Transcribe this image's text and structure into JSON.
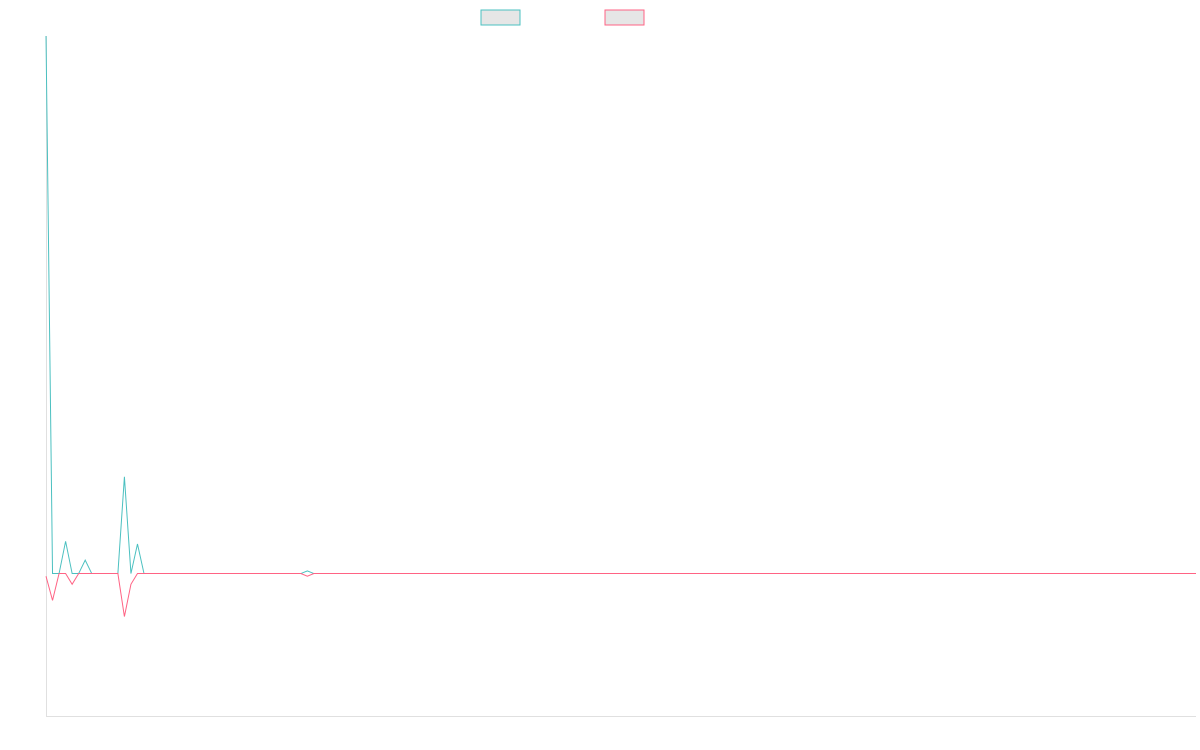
{
  "chart_data": {
    "type": "line",
    "title": "",
    "xlabel": "",
    "ylabel": "",
    "grid": false,
    "legend_position": "top",
    "x": [
      0,
      1,
      2,
      3,
      4,
      5,
      6,
      7,
      8,
      9,
      10,
      11,
      12,
      13,
      14,
      15,
      16,
      17,
      18,
      19,
      20,
      21,
      22,
      23,
      24,
      25,
      26,
      27,
      28,
      29,
      30,
      31,
      32,
      33,
      34,
      35,
      36,
      37,
      38,
      39,
      40,
      41,
      42,
      43,
      44,
      45,
      46,
      47,
      48,
      49,
      50,
      51,
      52,
      53,
      54,
      55,
      56,
      57,
      58,
      59,
      60,
      61,
      62,
      63,
      64,
      65,
      66,
      67,
      68,
      69,
      70,
      71,
      72,
      73,
      74,
      75,
      76,
      77,
      78,
      79,
      80,
      81,
      82,
      83,
      84,
      85,
      86,
      87,
      88,
      89,
      90,
      91,
      92,
      93,
      94,
      95,
      96,
      97,
      98,
      99,
      100,
      101,
      102,
      103,
      104,
      105,
      106,
      107,
      108,
      109,
      110,
      111,
      112,
      113,
      114,
      115,
      116,
      117,
      118,
      119,
      120,
      121,
      122,
      123,
      124,
      125,
      126,
      127,
      128,
      129,
      130,
      131,
      132,
      133,
      134,
      135,
      136,
      137,
      138,
      139,
      140,
      141,
      142,
      143,
      144,
      145,
      146,
      147,
      148,
      149,
      150,
      151,
      152,
      153,
      154,
      155,
      156,
      157,
      158,
      159,
      160,
      161,
      162,
      163,
      164,
      165,
      166,
      167,
      168,
      169,
      170,
      171,
      172,
      173,
      174,
      175,
      176
    ],
    "ylim": [
      -53,
      200
    ],
    "series": [
      {
        "name": "",
        "color": "#4bc0c0",
        "values": [
          200,
          0,
          0,
          12,
          0,
          0,
          5,
          0,
          0,
          0,
          0,
          0,
          36,
          0,
          11,
          0,
          0,
          0,
          0,
          0,
          0,
          0,
          0,
          0,
          0,
          0,
          0,
          0,
          0,
          0,
          0,
          0,
          0,
          0,
          0,
          0,
          0,
          0,
          0,
          0,
          1,
          0,
          0,
          0,
          0,
          0,
          0,
          0,
          0,
          0,
          0,
          0,
          0,
          0,
          0,
          0,
          0,
          0,
          0,
          0,
          0,
          0,
          0,
          0,
          0,
          0,
          0,
          0,
          0,
          0,
          0,
          0,
          0,
          0,
          0,
          0,
          0,
          0,
          0,
          0,
          0,
          0,
          0,
          0,
          0,
          0,
          0,
          0,
          0,
          0,
          0,
          0,
          0,
          0,
          0,
          0,
          0,
          0,
          0,
          0,
          0,
          0,
          0,
          0,
          0,
          0,
          0,
          0,
          0,
          0,
          0,
          0,
          0,
          0,
          0,
          0,
          0,
          0,
          0,
          0,
          0,
          0,
          0,
          0,
          0,
          0,
          0,
          0,
          0,
          0,
          0,
          0,
          0,
          0,
          0,
          0,
          0,
          0,
          0,
          0,
          0,
          0,
          0,
          0,
          0,
          0,
          0,
          0,
          0,
          0,
          0,
          0,
          0,
          0,
          0,
          0,
          0,
          0,
          0,
          0,
          0,
          0,
          0,
          0,
          0,
          0,
          0,
          0,
          0,
          0,
          0,
          0,
          0,
          0,
          0,
          0,
          0
        ]
      },
      {
        "name": "",
        "color": "#ff6384",
        "values": [
          -1,
          -10,
          0,
          0,
          -4,
          0,
          0,
          0,
          0,
          0,
          0,
          0,
          -16,
          -4,
          0,
          0,
          0,
          0,
          0,
          0,
          0,
          0,
          0,
          0,
          0,
          0,
          0,
          0,
          0,
          0,
          0,
          0,
          0,
          0,
          0,
          0,
          0,
          0,
          0,
          0,
          -1,
          0,
          0,
          0,
          0,
          0,
          0,
          0,
          0,
          0,
          0,
          0,
          0,
          0,
          0,
          0,
          0,
          0,
          0,
          0,
          0,
          0,
          0,
          0,
          0,
          0,
          0,
          0,
          0,
          0,
          0,
          0,
          0,
          0,
          0,
          0,
          0,
          0,
          0,
          0,
          0,
          0,
          0,
          0,
          0,
          0,
          0,
          0,
          0,
          0,
          0,
          0,
          0,
          0,
          0,
          0,
          0,
          0,
          0,
          0,
          0,
          0,
          0,
          0,
          0,
          0,
          0,
          0,
          0,
          0,
          0,
          0,
          0,
          0,
          0,
          0,
          0,
          0,
          0,
          0,
          0,
          0,
          0,
          0,
          0,
          0,
          0,
          0,
          0,
          0,
          0,
          0,
          0,
          0,
          0,
          0,
          0,
          0,
          0,
          0,
          0,
          0,
          0,
          0,
          0,
          0,
          0,
          0,
          0,
          0,
          0,
          0,
          0,
          0,
          0,
          0,
          0,
          0,
          0,
          0,
          0,
          0,
          0,
          0,
          0,
          0,
          0,
          0,
          0,
          0,
          0,
          0,
          0,
          0,
          0,
          0,
          0
        ]
      }
    ]
  }
}
